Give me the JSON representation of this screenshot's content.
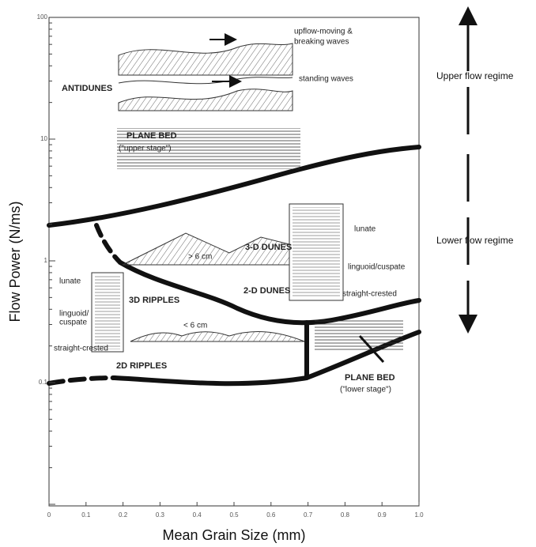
{
  "axes": {
    "x_label": "Mean Grain Size (mm)",
    "y_label": "Flow Power (N/ms)",
    "x_ticks": [
      "0",
      "0.1",
      "0.2",
      "0.3",
      "0.4",
      "0.5",
      "0.6",
      "0.7",
      "0.8",
      "0.9",
      "1.0"
    ],
    "y_ticks": [
      "100",
      "10",
      "1",
      "0.1"
    ]
  },
  "antidunes": {
    "label": "ANTIDUNES",
    "breaking": [
      "upflow-moving &",
      "breaking waves"
    ],
    "standing": "standing waves"
  },
  "upper_plane_bed": {
    "label": "PLANE BED",
    "note": "(\"upper stage\")"
  },
  "dunes": {
    "three_d": "3-D DUNES",
    "two_d": "2-D DUNES",
    "height": "> 6 cm",
    "lunate": "lunate",
    "linguoid": "linguoid/cuspate",
    "straight": "straight-crested"
  },
  "ripples": {
    "three_d": "3D RIPPLES",
    "two_d": "2D RIPPLES",
    "height": "< 6 cm",
    "lunate": "lunate",
    "linguoid": [
      "linguoid/",
      "cuspate"
    ],
    "straight": "straight-crested"
  },
  "lower_plane_bed": {
    "label": "PLANE BED",
    "note": "(\"lower stage\")"
  },
  "regimes": {
    "upper": "Upper flow regime",
    "lower": "Lower flow regime"
  }
}
